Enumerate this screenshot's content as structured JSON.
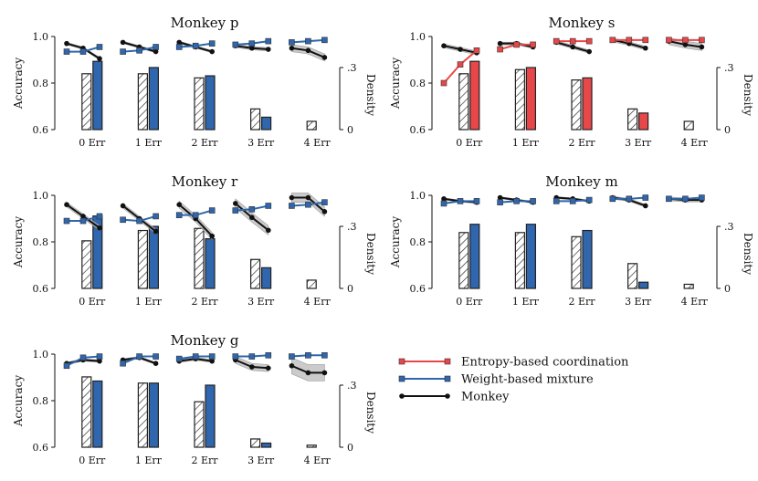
{
  "legend": {
    "position": "bottom-right",
    "items": [
      {
        "label": "Entropy-based coordination",
        "color": "#e8474a"
      },
      {
        "label": "Weight-based mixture",
        "color": "#2f66ad"
      },
      {
        "label": "Monkey",
        "color": "#111111"
      }
    ]
  },
  "chart_data": [
    {
      "type": "line+bar",
      "title": "Monkey p",
      "ylabel": "Accuracy",
      "y2label": "Density",
      "ylim": [
        0.6,
        1.0
      ],
      "yticks": [
        "0.6",
        "0.8",
        "1.0"
      ],
      "y2lim": [
        0,
        0.45
      ],
      "y2ticks": [
        "0",
        ".3"
      ],
      "categories": [
        "0 Err",
        "1 Err",
        "2 Err",
        "3 Err",
        "4 Err"
      ],
      "model": "weight",
      "monkey": [
        [
          0.97,
          0.95,
          0.905
        ],
        [
          0.975,
          0.955,
          0.935
        ],
        [
          0.975,
          0.955,
          0.935
        ],
        [
          0.96,
          0.95,
          0.945
        ],
        [
          0.95,
          0.94,
          0.91
        ]
      ],
      "model_acc": [
        [
          0.935,
          0.935,
          0.955
        ],
        [
          0.935,
          0.94,
          0.955
        ],
        [
          0.955,
          0.96,
          0.97
        ],
        [
          0.965,
          0.97,
          0.98
        ],
        [
          0.975,
          0.98,
          0.985
        ]
      ],
      "density_monkey": [
        0.27,
        0.27,
        0.25,
        0.1,
        0.04
      ],
      "density_model": [
        0.33,
        0.3,
        0.26,
        0.06,
        0.0
      ],
      "shade": [
        0.005,
        0.005,
        0.005,
        0.007,
        0.015
      ]
    },
    {
      "type": "line+bar",
      "title": "Monkey s",
      "ylabel": "Accuracy",
      "y2label": "Density",
      "ylim": [
        0.6,
        1.0
      ],
      "yticks": [
        "0.6",
        "0.8",
        "1.0"
      ],
      "y2lim": [
        0,
        0.45
      ],
      "y2ticks": [
        "0",
        ".3"
      ],
      "categories": [
        "0 Err",
        "1 Err",
        "2 Err",
        "3 Err",
        "4 Err"
      ],
      "model": "entropy",
      "monkey": [
        [
          0.96,
          0.945,
          0.93
        ],
        [
          0.97,
          0.97,
          0.955
        ],
        [
          0.975,
          0.955,
          0.935
        ],
        [
          0.985,
          0.97,
          0.95
        ],
        [
          0.98,
          0.965,
          0.955
        ]
      ],
      "model_acc": [
        [
          0.8,
          0.88,
          0.94
        ],
        [
          0.945,
          0.965,
          0.965
        ],
        [
          0.98,
          0.98,
          0.98
        ],
        [
          0.985,
          0.985,
          0.985
        ],
        [
          0.985,
          0.985,
          0.985
        ]
      ],
      "density_monkey": [
        0.27,
        0.29,
        0.24,
        0.1,
        0.04
      ],
      "density_model": [
        0.33,
        0.3,
        0.25,
        0.08,
        0.0
      ],
      "shade": [
        0.008,
        0.006,
        0.007,
        0.008,
        0.015
      ]
    },
    {
      "type": "line+bar",
      "title": "Monkey r",
      "ylabel": "Accuracy",
      "y2label": "Density",
      "ylim": [
        0.6,
        1.0
      ],
      "yticks": [
        "0.6",
        "0.8",
        "1.0"
      ],
      "y2lim": [
        0,
        0.45
      ],
      "y2ticks": [
        "0",
        ".3"
      ],
      "categories": [
        "0 Err",
        "1 Err",
        "2 Err",
        "3 Err",
        "4 Err"
      ],
      "model": "weight",
      "monkey": [
        [
          0.96,
          0.91,
          0.86
        ],
        [
          0.955,
          0.9,
          0.845
        ],
        [
          0.96,
          0.9,
          0.825
        ],
        [
          0.965,
          0.905,
          0.85
        ],
        [
          0.99,
          0.99,
          0.93
        ]
      ],
      "model_acc": [
        [
          0.89,
          0.89,
          0.91
        ],
        [
          0.895,
          0.89,
          0.91
        ],
        [
          0.915,
          0.915,
          0.935
        ],
        [
          0.935,
          0.94,
          0.955
        ],
        [
          0.955,
          0.96,
          0.97
        ]
      ],
      "density_monkey": [
        0.23,
        0.28,
        0.29,
        0.14,
        0.04
      ],
      "density_model": [
        0.35,
        0.3,
        0.24,
        0.1,
        0.0
      ],
      "shade": [
        0.01,
        0.01,
        0.015,
        0.02,
        0.02
      ]
    },
    {
      "type": "line+bar",
      "title": "Monkey m",
      "ylabel": "Accuracy",
      "y2label": "Density",
      "ylim": [
        0.6,
        1.0
      ],
      "yticks": [
        "0.6",
        "0.8",
        "1.0"
      ],
      "y2lim": [
        0,
        0.45
      ],
      "y2ticks": [
        "0",
        ".3"
      ],
      "categories": [
        "0 Err",
        "1 Err",
        "2 Err",
        "3 Err",
        "4 Err"
      ],
      "model": "weight",
      "monkey": [
        [
          0.985,
          0.975,
          0.97
        ],
        [
          0.99,
          0.98,
          0.97
        ],
        [
          0.99,
          0.985,
          0.975
        ],
        [
          0.99,
          0.98,
          0.955
        ],
        [
          0.985,
          0.98,
          0.98
        ]
      ],
      "model_acc": [
        [
          0.965,
          0.975,
          0.975
        ],
        [
          0.97,
          0.975,
          0.975
        ],
        [
          0.975,
          0.975,
          0.98
        ],
        [
          0.985,
          0.985,
          0.99
        ],
        [
          0.985,
          0.985,
          0.99
        ]
      ],
      "density_monkey": [
        0.27,
        0.27,
        0.25,
        0.12,
        0.02
      ],
      "density_model": [
        0.31,
        0.31,
        0.28,
        0.03,
        0.0
      ],
      "shade": [
        0.004,
        0.004,
        0.004,
        0.006,
        0.008
      ]
    },
    {
      "type": "line+bar",
      "title": "Monkey g",
      "ylabel": "Accuracy",
      "y2label": "Density",
      "ylim": [
        0.6,
        1.0
      ],
      "yticks": [
        "0.6",
        "0.8",
        "1.0"
      ],
      "y2lim": [
        0,
        0.45
      ],
      "y2ticks": [
        "0",
        ".3"
      ],
      "categories": [
        "0 Err",
        "1 Err",
        "2 Err",
        "3 Err",
        "4 Err"
      ],
      "model": "weight",
      "monkey": [
        [
          0.96,
          0.975,
          0.97
        ],
        [
          0.975,
          0.985,
          0.96
        ],
        [
          0.97,
          0.98,
          0.97
        ],
        [
          0.975,
          0.945,
          0.94
        ],
        [
          0.95,
          0.92,
          0.92
        ]
      ],
      "model_acc": [
        [
          0.95,
          0.985,
          0.99
        ],
        [
          0.96,
          0.99,
          0.99
        ],
        [
          0.98,
          0.99,
          0.99
        ],
        [
          0.99,
          0.99,
          0.995
        ],
        [
          0.99,
          0.995,
          0.995
        ]
      ],
      "density_monkey": [
        0.34,
        0.31,
        0.22,
        0.04,
        0.01
      ],
      "density_model": [
        0.32,
        0.31,
        0.3,
        0.02,
        0.0
      ],
      "shade": [
        0.005,
        0.005,
        0.006,
        0.015,
        0.035
      ]
    }
  ]
}
